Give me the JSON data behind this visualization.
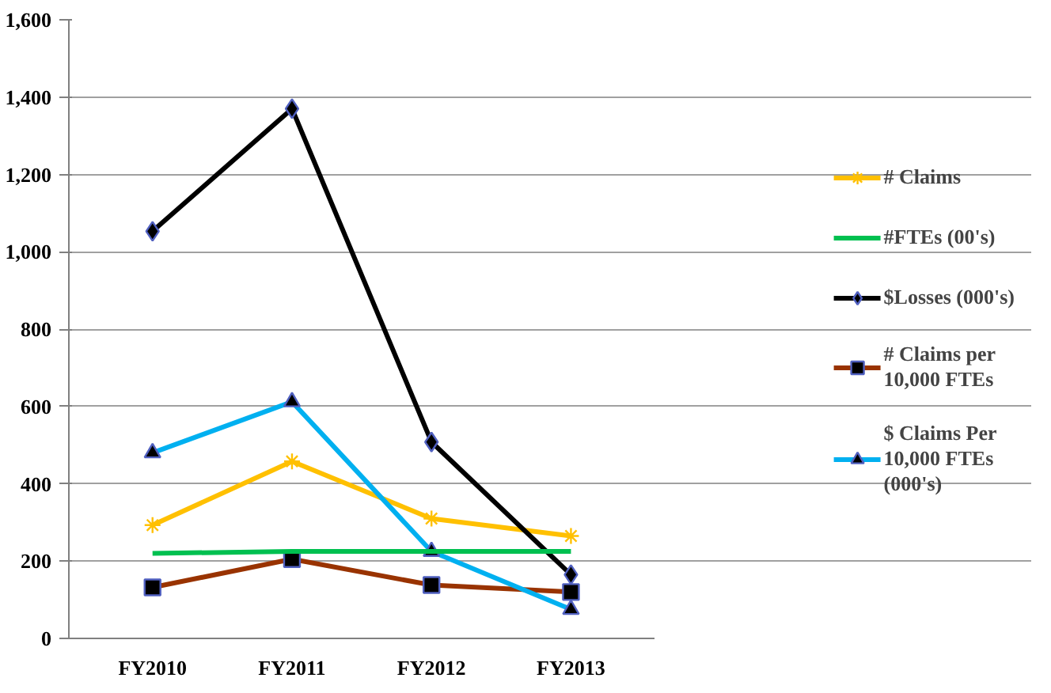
{
  "chart_data": {
    "type": "line",
    "categories": [
      "FY2010",
      "FY2011",
      "FY2012",
      "FY2013"
    ],
    "series": [
      {
        "name": "# Claims",
        "color": "#ffc000",
        "values": [
          293,
          458,
          310,
          265
        ],
        "marker": "cross"
      },
      {
        "name": "#FTEs (00's)",
        "color": "#00c050",
        "values": [
          220,
          225,
          225,
          225
        ],
        "marker": "none"
      },
      {
        "name": "$Losses (000's)",
        "color": "#000000",
        "values": [
          1053,
          1370,
          508,
          165
        ],
        "marker": "diamond"
      },
      {
        "name": "# Claims per\n10,000 FTEs",
        "color": "#993300",
        "values": [
          132,
          205,
          138,
          120
        ],
        "marker": "square"
      },
      {
        "name": "$ Claims Per\n10,000 FTEs\n(000's)",
        "color": "#00b0f0",
        "values": [
          480,
          612,
          225,
          75
        ],
        "marker": "triangle"
      }
    ],
    "ylim": [
      0,
      1600
    ],
    "yticks": [
      0,
      200,
      400,
      600,
      800,
      {
        "value": 1000,
        "label": "1,000"
      },
      {
        "value": 1200,
        "label": "1,200"
      },
      {
        "value": 1400,
        "label": "1,400"
      },
      {
        "value": 1600,
        "label": "1,600"
      }
    ],
    "grid": "y",
    "legend": "right",
    "line_style": "solid"
  }
}
